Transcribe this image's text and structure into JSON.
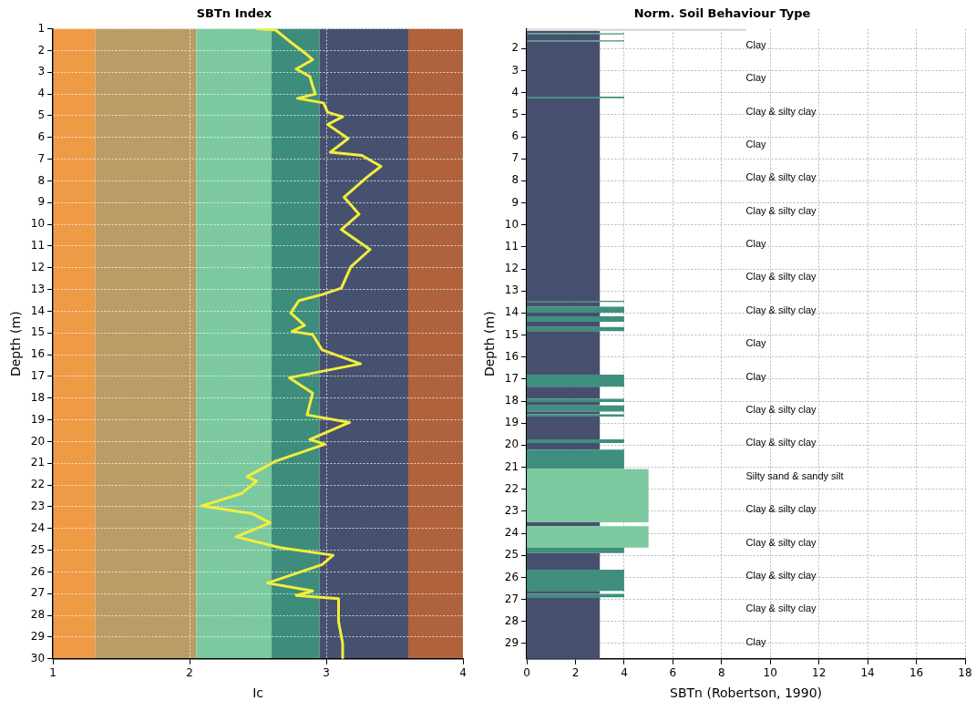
{
  "chart_data": [
    {
      "type": "line",
      "title": "SBTn Index",
      "xlabel": "Ic",
      "ylabel": "Depth (m)",
      "color": "#f2ee3c",
      "x": [
        2.49,
        2.63,
        2.73,
        2.85,
        2.9,
        2.78,
        2.88,
        2.9,
        2.92,
        2.79,
        2.98,
        3.01,
        3.12,
        3.01,
        3.16,
        3.03,
        3.26,
        3.4,
        3.3,
        3.13,
        3.24,
        3.11,
        3.32,
        3.18,
        3.11,
        2.97,
        2.8,
        2.74,
        2.84,
        2.75,
        2.9,
        2.97,
        3.25,
        2.73,
        2.9,
        2.86,
        3.17,
        2.88,
        2.99,
        2.63,
        2.42,
        2.49,
        2.38,
        2.09,
        2.46,
        2.59,
        2.34,
        2.66,
        3.05,
        2.97,
        2.57,
        2.9,
        2.78,
        3.09,
        3.09,
        3.12,
        3.12
      ],
      "values": [
        1.0,
        1.06,
        1.57,
        2.14,
        2.42,
        2.85,
        3.2,
        3.63,
        4.0,
        4.2,
        4.41,
        4.84,
        5.05,
        5.4,
        6.05,
        6.68,
        6.83,
        7.33,
        7.82,
        8.75,
        9.53,
        10.24,
        11.16,
        11.95,
        12.94,
        13.23,
        13.51,
        14.08,
        14.65,
        14.93,
        15.07,
        15.78,
        16.42,
        17.06,
        17.77,
        18.77,
        19.12,
        19.9,
        20.12,
        20.9,
        21.61,
        21.82,
        22.39,
        22.96,
        23.32,
        23.74,
        24.38,
        24.88,
        25.23,
        25.66,
        26.51,
        26.87,
        27.08,
        27.23,
        28.29,
        29.29,
        29.95
      ],
      "xlim": [
        1,
        4
      ],
      "xticks": [
        1,
        2,
        3,
        4
      ],
      "ylim": [
        30,
        1
      ],
      "yticks": [
        1,
        2,
        3,
        4,
        5,
        6,
        7,
        8,
        9,
        10,
        11,
        12,
        13,
        14,
        15,
        16,
        17,
        18,
        19,
        20,
        21,
        22,
        23,
        24,
        25,
        26,
        27,
        28,
        29,
        30
      ],
      "grid": true,
      "bands": [
        {
          "axis": "x",
          "from": 1,
          "to": 1.31,
          "color": "#ef9a45"
        },
        {
          "axis": "x",
          "from": 1.31,
          "to": 2.05,
          "color": "#b99c66"
        },
        {
          "axis": "x",
          "from": 2.05,
          "to": 2.6,
          "color": "#7cc9a0"
        },
        {
          "axis": "x",
          "from": 2.6,
          "to": 2.95,
          "color": "#3e8c7c"
        },
        {
          "axis": "x",
          "from": 2.95,
          "to": 3.6,
          "color": "#465170"
        },
        {
          "axis": "x",
          "from": 3.6,
          "to": 4,
          "color": "#b0623c"
        }
      ]
    },
    {
      "type": "histogram",
      "orientation": "horizontal",
      "title": "Norm. Soil Behaviour Type",
      "xlabel": "SBTn (Robertson, 1990)",
      "ylabel": "Depth (m)",
      "bins": [
        1.1,
        1.2,
        1.3,
        1.35,
        1.62,
        1.68,
        4.18,
        4.25,
        13.45,
        13.5,
        13.72,
        13.98,
        14.15,
        14.4,
        14.64,
        14.82,
        16.8,
        17.35,
        17.9,
        18.04,
        18.2,
        18.47,
        18.6,
        18.7,
        19.74,
        19.9,
        20.2,
        21.08,
        23.5,
        23.68,
        24.65,
        24.9,
        25.65,
        26.62,
        26.75,
        26.9,
        29.7
      ],
      "values": [
        9,
        3,
        4,
        3,
        4,
        3,
        4,
        3,
        4,
        3,
        4,
        3,
        4,
        3,
        4,
        3,
        4,
        3,
        4,
        3,
        4,
        3,
        4,
        3,
        4,
        3,
        4,
        5,
        3,
        5,
        4,
        3,
        4,
        3,
        4,
        3
      ],
      "colors": [
        "#d9d9d9",
        "#46506e",
        "#3f8f7e",
        "#46506e",
        "#3f8f7e",
        "#46506e",
        "#3f8f7e",
        "#46506e",
        "#3f8f7e",
        "#46506e",
        "#3f8f7e",
        "#46506e",
        "#3f8f7e",
        "#46506e",
        "#3f8f7e",
        "#46506e",
        "#3f8f7e",
        "#46506e",
        "#3f8f7e",
        "#46506e",
        "#3f8f7e",
        "#46506e",
        "#3f8f7e",
        "#46506e",
        "#3f8f7e",
        "#46506e",
        "#3f8f7e",
        "#7dc9a0",
        "#46506e",
        "#7dc9a0",
        "#3f8f7e",
        "#46506e",
        "#3f8f7e",
        "#46506e",
        "#3f8f7e",
        "#46506e"
      ],
      "xlim": [
        0,
        18
      ],
      "xticks": [
        0,
        2,
        4,
        6,
        8,
        10,
        12,
        14,
        16,
        18
      ],
      "ylim": [
        29.7,
        1.1
      ],
      "yticks": [
        2,
        3,
        4,
        5,
        6,
        7,
        8,
        9,
        10,
        11,
        12,
        13,
        14,
        15,
        16,
        17,
        18,
        19,
        20,
        21,
        22,
        23,
        24,
        25,
        26,
        27,
        28,
        29
      ],
      "grid": true,
      "annotations": [
        "Clay",
        "Clay",
        "Clay & silty clay",
        "Clay",
        "Clay & silty clay",
        "Clay & silty clay",
        "Clay",
        "Clay & silty clay",
        "Clay & silty clay",
        "Clay",
        "Clay",
        "Clay & silty clay",
        "Clay & silty clay",
        "Silty sand & sandy silt",
        "Clay & silty clay",
        "Clay & silty clay",
        "Clay & silty clay",
        "Clay & silty clay",
        "Clay"
      ]
    }
  ]
}
